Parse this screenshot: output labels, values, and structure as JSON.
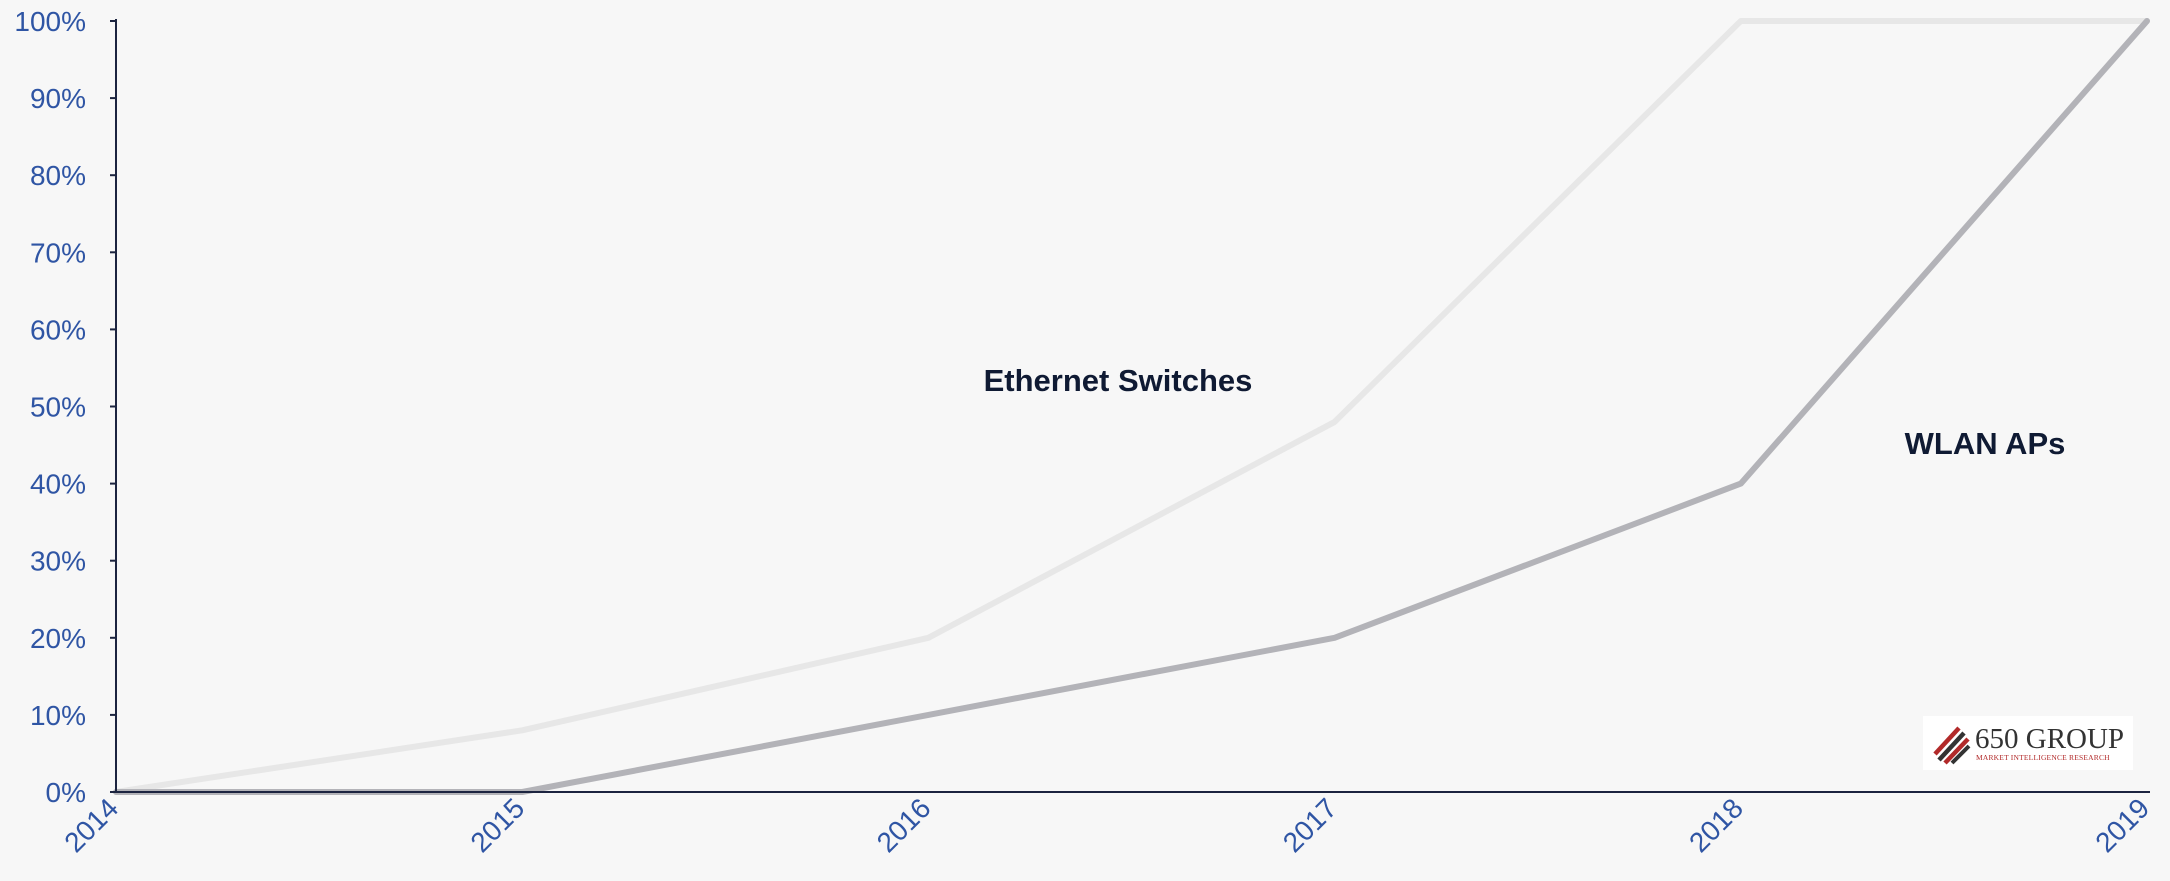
{
  "chart_data": {
    "type": "line",
    "title": "",
    "xlabel": "",
    "ylabel": "",
    "x": [
      "2014",
      "2015",
      "2016",
      "2017",
      "2018",
      "2019"
    ],
    "ylim": [
      0,
      100
    ],
    "y_ticks": [
      "0%",
      "10%",
      "20%",
      "30%",
      "40%",
      "50%",
      "60%",
      "70%",
      "80%",
      "90%",
      "100%"
    ],
    "grid": false,
    "legend": "none",
    "series": [
      {
        "name": "Ethernet Switches",
        "values": [
          0,
          8,
          20,
          48,
          100,
          100
        ],
        "color": "#e7e7e7"
      },
      {
        "name": "WLAN APs",
        "values": [
          0,
          0,
          10,
          20,
          40,
          100
        ],
        "color": "#b3b3b8"
      }
    ],
    "axis_color": "#1c2440",
    "tick_color": "#2f55a4"
  },
  "logo": {
    "name": "650 GROUP",
    "tagline": "MARKET INTELLIGENCE RESEARCH",
    "stripe_color": "#b22a2a",
    "stripe_dark": "#333333"
  }
}
